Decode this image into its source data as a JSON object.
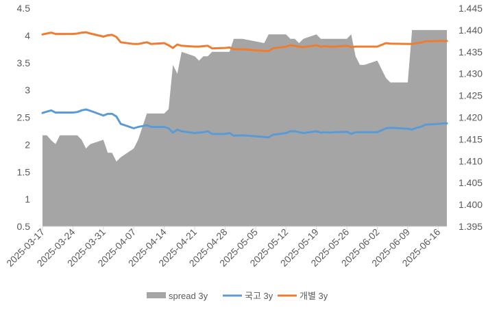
{
  "chart_data": {
    "type": "area",
    "title": "",
    "xlabel": "",
    "ylabel": "",
    "y_left": {
      "ylim": [
        0.5,
        4.5
      ],
      "ticks": [
        "4.5",
        "4",
        "3.5",
        "3",
        "2.5",
        "2",
        "1.5",
        "1",
        "0.5"
      ]
    },
    "y_right": {
      "ylim": [
        1.395,
        1.445
      ],
      "ticks": [
        "1.445",
        "1.440",
        "1.435",
        "1.430",
        "1.425",
        "1.420",
        "1.415",
        "1.410",
        "1.405",
        "1.400",
        "1.395"
      ]
    },
    "x_ticks": [
      "2025-03-17",
      "2025-03-24",
      "2025-03-31",
      "2025-04-07",
      "2025-04-14",
      "2025-04-21",
      "2025-04-28",
      "2025-05-05",
      "2025-05-12",
      "2025-05-19",
      "2025-05-26",
      "2025-06-02",
      "2025-06-09",
      "2025-06-16"
    ],
    "x_range": [
      "2025-03-17",
      "2025-06-18"
    ],
    "grid": false,
    "legend_position": "bottom",
    "colors": {
      "spread": "#a5a5a5",
      "gov": "#5b9bd5",
      "indiv": "#ed7d31",
      "axis": "#d9d9d9",
      "text": "#595959"
    },
    "series": [
      {
        "name": "spread 3y",
        "kind": "area",
        "axis": "left",
        "points": [
          [
            "2025-03-17",
            2.17
          ],
          [
            "2025-03-18",
            2.17
          ],
          [
            "2025-03-19",
            2.08
          ],
          [
            "2025-03-20",
            2.01
          ],
          [
            "2025-03-21",
            2.17
          ],
          [
            "2025-03-24",
            2.17
          ],
          [
            "2025-03-25",
            2.17
          ],
          [
            "2025-03-26",
            2.09
          ],
          [
            "2025-03-27",
            1.93
          ],
          [
            "2025-03-28",
            2.01
          ],
          [
            "2025-03-31",
            2.09
          ],
          [
            "2025-04-01",
            1.85
          ],
          [
            "2025-04-02",
            1.85
          ],
          [
            "2025-04-03",
            1.69
          ],
          [
            "2025-04-04",
            1.77
          ],
          [
            "2025-04-07",
            1.93
          ],
          [
            "2025-04-08",
            2.09
          ],
          [
            "2025-04-09",
            2.33
          ],
          [
            "2025-04-10",
            2.57
          ],
          [
            "2025-04-11",
            2.57
          ],
          [
            "2025-04-14",
            2.57
          ],
          [
            "2025-04-15",
            2.65
          ],
          [
            "2025-04-16",
            3.46
          ],
          [
            "2025-04-17",
            3.3
          ],
          [
            "2025-04-18",
            3.7
          ],
          [
            "2025-04-21",
            3.62
          ],
          [
            "2025-04-22",
            3.54
          ],
          [
            "2025-04-23",
            3.62
          ],
          [
            "2025-04-24",
            3.62
          ],
          [
            "2025-04-25",
            3.7
          ],
          [
            "2025-04-28",
            3.7
          ],
          [
            "2025-04-29",
            3.7
          ],
          [
            "2025-04-30",
            3.94
          ],
          [
            "2025-05-02",
            3.94
          ],
          [
            "2025-05-07",
            3.86
          ],
          [
            "2025-05-08",
            4.02
          ],
          [
            "2025-05-09",
            4.02
          ],
          [
            "2025-05-12",
            4.02
          ],
          [
            "2025-05-13",
            3.94
          ],
          [
            "2025-05-14",
            3.94
          ],
          [
            "2025-05-15",
            3.86
          ],
          [
            "2025-05-16",
            3.94
          ],
          [
            "2025-05-19",
            4.02
          ],
          [
            "2025-05-20",
            3.94
          ],
          [
            "2025-05-21",
            3.94
          ],
          [
            "2025-05-22",
            3.94
          ],
          [
            "2025-05-23",
            3.94
          ],
          [
            "2025-05-26",
            3.94
          ],
          [
            "2025-05-27",
            4.02
          ],
          [
            "2025-05-28",
            3.62
          ],
          [
            "2025-05-29",
            3.46
          ],
          [
            "2025-05-30",
            3.46
          ],
          [
            "2025-06-02",
            3.54
          ],
          [
            "2025-06-04",
            3.22
          ],
          [
            "2025-06-05",
            3.14
          ],
          [
            "2025-06-09",
            3.14
          ],
          [
            "2025-06-10",
            4.1
          ],
          [
            "2025-06-11",
            4.1
          ],
          [
            "2025-06-16",
            4.1
          ],
          [
            "2025-06-17",
            4.1
          ],
          [
            "2025-06-18",
            4.1
          ]
        ]
      },
      {
        "name": "국고 3y",
        "kind": "line",
        "axis": "right",
        "points": [
          [
            "2025-03-17",
            1.421
          ],
          [
            "2025-03-18",
            1.4213
          ],
          [
            "2025-03-19",
            1.4216
          ],
          [
            "2025-03-20",
            1.4211
          ],
          [
            "2025-03-24",
            1.4211
          ],
          [
            "2025-03-25",
            1.4212
          ],
          [
            "2025-03-26",
            1.4216
          ],
          [
            "2025-03-27",
            1.4218
          ],
          [
            "2025-03-28",
            1.4215
          ],
          [
            "2025-03-31",
            1.4204
          ],
          [
            "2025-04-01",
            1.4208
          ],
          [
            "2025-04-02",
            1.4208
          ],
          [
            "2025-04-03",
            1.4202
          ],
          [
            "2025-04-04",
            1.4185
          ],
          [
            "2025-04-07",
            1.4175
          ],
          [
            "2025-04-08",
            1.4178
          ],
          [
            "2025-04-09",
            1.418
          ],
          [
            "2025-04-10",
            1.4182
          ],
          [
            "2025-04-11",
            1.4178
          ],
          [
            "2025-04-14",
            1.4178
          ],
          [
            "2025-04-15",
            1.4175
          ],
          [
            "2025-04-16",
            1.4165
          ],
          [
            "2025-04-17",
            1.4172
          ],
          [
            "2025-04-18",
            1.4168
          ],
          [
            "2025-04-21",
            1.4164
          ],
          [
            "2025-04-22",
            1.4165
          ],
          [
            "2025-04-23",
            1.4166
          ],
          [
            "2025-04-24",
            1.4168
          ],
          [
            "2025-04-25",
            1.4162
          ],
          [
            "2025-04-28",
            1.4162
          ],
          [
            "2025-04-29",
            1.4164
          ],
          [
            "2025-04-30",
            1.4158
          ],
          [
            "2025-05-02",
            1.4159
          ],
          [
            "2025-05-07",
            1.4155
          ],
          [
            "2025-05-08",
            1.4154
          ],
          [
            "2025-05-09",
            1.416
          ],
          [
            "2025-05-12",
            1.4164
          ],
          [
            "2025-05-13",
            1.4168
          ],
          [
            "2025-05-14",
            1.4168
          ],
          [
            "2025-05-15",
            1.4166
          ],
          [
            "2025-05-16",
            1.4164
          ],
          [
            "2025-05-19",
            1.4168
          ],
          [
            "2025-05-20",
            1.4165
          ],
          [
            "2025-05-21",
            1.4166
          ],
          [
            "2025-05-22",
            1.4165
          ],
          [
            "2025-05-23",
            1.4166
          ],
          [
            "2025-05-26",
            1.4167
          ],
          [
            "2025-05-27",
            1.4162
          ],
          [
            "2025-05-28",
            1.4166
          ],
          [
            "2025-05-30",
            1.4166
          ],
          [
            "2025-06-02",
            1.4166
          ],
          [
            "2025-06-04",
            1.4175
          ],
          [
            "2025-06-05",
            1.4176
          ],
          [
            "2025-06-09",
            1.4174
          ],
          [
            "2025-06-10",
            1.4172
          ],
          [
            "2025-06-11",
            1.4176
          ],
          [
            "2025-06-12",
            1.4178
          ],
          [
            "2025-06-13",
            1.4183
          ],
          [
            "2025-06-16",
            1.4185
          ],
          [
            "2025-06-17",
            1.4186
          ],
          [
            "2025-06-18",
            1.4186
          ]
        ]
      },
      {
        "name": "개별 3y",
        "kind": "line",
        "axis": "right",
        "points": [
          [
            "2025-03-17",
            1.439
          ],
          [
            "2025-03-18",
            1.4392
          ],
          [
            "2025-03-19",
            1.4394
          ],
          [
            "2025-03-20",
            1.4391
          ],
          [
            "2025-03-24",
            1.4391
          ],
          [
            "2025-03-25",
            1.4392
          ],
          [
            "2025-03-26",
            1.4394
          ],
          [
            "2025-03-27",
            1.4395
          ],
          [
            "2025-03-28",
            1.4392
          ],
          [
            "2025-03-31",
            1.4385
          ],
          [
            "2025-04-01",
            1.4388
          ],
          [
            "2025-04-02",
            1.4389
          ],
          [
            "2025-04-03",
            1.4384
          ],
          [
            "2025-04-04",
            1.4372
          ],
          [
            "2025-04-07",
            1.4368
          ],
          [
            "2025-04-08",
            1.4368
          ],
          [
            "2025-04-09",
            1.437
          ],
          [
            "2025-04-10",
            1.4372
          ],
          [
            "2025-04-11",
            1.4368
          ],
          [
            "2025-04-14",
            1.437
          ],
          [
            "2025-04-15",
            1.4365
          ],
          [
            "2025-04-16",
            1.4359
          ],
          [
            "2025-04-17",
            1.4367
          ],
          [
            "2025-04-18",
            1.4364
          ],
          [
            "2025-04-21",
            1.4362
          ],
          [
            "2025-04-22",
            1.4362
          ],
          [
            "2025-04-23",
            1.4363
          ],
          [
            "2025-04-24",
            1.4364
          ],
          [
            "2025-04-25",
            1.4358
          ],
          [
            "2025-04-28",
            1.4359
          ],
          [
            "2025-04-29",
            1.436
          ],
          [
            "2025-04-30",
            1.4356
          ],
          [
            "2025-05-02",
            1.4356
          ],
          [
            "2025-05-07",
            1.4352
          ],
          [
            "2025-05-08",
            1.4352
          ],
          [
            "2025-05-09",
            1.4358
          ],
          [
            "2025-05-12",
            1.4362
          ],
          [
            "2025-05-13",
            1.4365
          ],
          [
            "2025-05-14",
            1.4364
          ],
          [
            "2025-05-15",
            1.4362
          ],
          [
            "2025-05-16",
            1.4361
          ],
          [
            "2025-05-19",
            1.4365
          ],
          [
            "2025-05-20",
            1.4362
          ],
          [
            "2025-05-21",
            1.4363
          ],
          [
            "2025-05-22",
            1.4362
          ],
          [
            "2025-05-23",
            1.4362
          ],
          [
            "2025-05-26",
            1.4364
          ],
          [
            "2025-05-27",
            1.4361
          ],
          [
            "2025-05-28",
            1.4362
          ],
          [
            "2025-05-30",
            1.4362
          ],
          [
            "2025-06-02",
            1.4362
          ],
          [
            "2025-06-04",
            1.437
          ],
          [
            "2025-06-05",
            1.4369
          ],
          [
            "2025-06-09",
            1.4368
          ],
          [
            "2025-06-10",
            1.4368
          ],
          [
            "2025-06-11",
            1.437
          ],
          [
            "2025-06-12",
            1.4371
          ],
          [
            "2025-06-13",
            1.4374
          ],
          [
            "2025-06-16",
            1.4375
          ],
          [
            "2025-06-17",
            1.4375
          ],
          [
            "2025-06-18",
            1.4375
          ]
        ]
      }
    ]
  }
}
